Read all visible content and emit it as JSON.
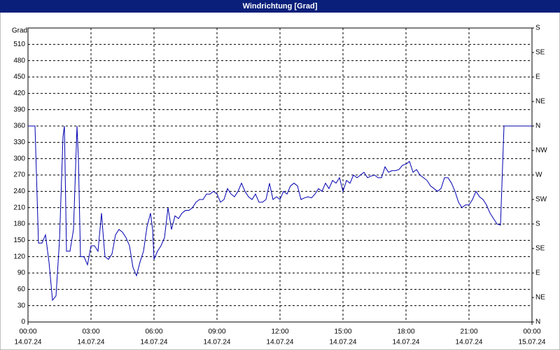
{
  "chart_data": {
    "type": "line",
    "title": "Windrichtung [Grad]",
    "y_label": "Grad",
    "x": [
      0,
      20,
      30,
      40,
      50,
      60,
      70,
      80,
      90,
      100,
      104,
      110,
      120,
      130,
      140,
      144,
      150,
      160,
      170,
      180,
      190,
      200,
      210,
      216,
      220,
      230,
      240,
      250,
      260,
      270,
      280,
      290,
      300,
      310,
      320,
      330,
      340,
      350,
      356,
      360,
      370,
      380,
      390,
      400,
      410,
      420,
      430,
      440,
      450,
      460,
      470,
      480,
      490,
      500,
      510,
      520,
      530,
      540,
      550,
      560,
      570,
      580,
      590,
      600,
      610,
      620,
      630,
      640,
      650,
      660,
      670,
      680,
      690,
      700,
      710,
      720,
      730,
      740,
      750,
      760,
      770,
      780,
      790,
      800,
      810,
      820,
      830,
      840,
      850,
      860,
      870,
      880,
      890,
      900,
      910,
      920,
      930,
      940,
      950,
      960,
      970,
      980,
      990,
      1000,
      1010,
      1020,
      1030,
      1040,
      1050,
      1060,
      1070,
      1080,
      1090,
      1100,
      1110,
      1120,
      1130,
      1140,
      1150,
      1160,
      1170,
      1180,
      1190,
      1200,
      1210,
      1220,
      1230,
      1240,
      1250,
      1260,
      1270,
      1280,
      1290,
      1300,
      1310,
      1320,
      1330,
      1340,
      1350,
      1360,
      1440
    ],
    "values": [
      360,
      360,
      145,
      145,
      160,
      110,
      40,
      48,
      150,
      340,
      360,
      130,
      130,
      170,
      360,
      300,
      120,
      120,
      105,
      140,
      140,
      130,
      200,
      150,
      120,
      115,
      125,
      160,
      170,
      165,
      155,
      140,
      100,
      85,
      110,
      130,
      175,
      200,
      170,
      115,
      130,
      140,
      155,
      210,
      170,
      195,
      190,
      200,
      205,
      205,
      210,
      220,
      225,
      225,
      235,
      235,
      240,
      235,
      220,
      225,
      245,
      235,
      230,
      240,
      255,
      240,
      230,
      225,
      235,
      220,
      220,
      225,
      255,
      225,
      230,
      225,
      240,
      235,
      250,
      255,
      250,
      225,
      228,
      230,
      228,
      235,
      245,
      240,
      255,
      245,
      260,
      255,
      265,
      240,
      260,
      255,
      270,
      265,
      270,
      275,
      265,
      268,
      270,
      265,
      265,
      285,
      275,
      278,
      278,
      280,
      288,
      290,
      295,
      275,
      280,
      270,
      265,
      260,
      250,
      245,
      240,
      245,
      265,
      265,
      255,
      240,
      220,
      210,
      215,
      215,
      225,
      240,
      230,
      225,
      215,
      200,
      190,
      180,
      178,
      360,
      360
    ],
    "color": "#0000b0",
    "xlim": [
      0,
      1440
    ],
    "xticks": [
      {
        "value": 0,
        "label": "00:00"
      },
      {
        "value": 180,
        "label": "03:00"
      },
      {
        "value": 360,
        "label": "06:00"
      },
      {
        "value": 540,
        "label": "09:00"
      },
      {
        "value": 720,
        "label": "12:00"
      },
      {
        "value": 900,
        "label": "15:00"
      },
      {
        "value": 1080,
        "label": "18:00"
      },
      {
        "value": 1260,
        "label": "21:00"
      },
      {
        "value": 1440,
        "label": "00:00"
      }
    ],
    "xtick_dates": [
      "14.07.24",
      "14.07.24",
      "14.07.24",
      "14.07.24",
      "14.07.24",
      "14.07.24",
      "14.07.24",
      "14.07.24",
      "15.07.24"
    ],
    "ylim": [
      0,
      540
    ],
    "yticks": [
      0,
      30,
      60,
      90,
      120,
      150,
      180,
      210,
      240,
      270,
      300,
      330,
      360,
      390,
      420,
      450,
      480,
      510
    ],
    "y2lim": [
      0,
      540
    ],
    "y2ticks": [
      {
        "value": 0,
        "label": "N"
      },
      {
        "value": 45,
        "label": "NE"
      },
      {
        "value": 90,
        "label": "E"
      },
      {
        "value": 135,
        "label": "SE"
      },
      {
        "value": 180,
        "label": "S"
      },
      {
        "value": 225,
        "label": "SW"
      },
      {
        "value": 270,
        "label": "W"
      },
      {
        "value": 315,
        "label": "NW"
      },
      {
        "value": 360,
        "label": "N"
      },
      {
        "value": 405,
        "label": "NE"
      },
      {
        "value": 450,
        "label": "E"
      },
      {
        "value": 495,
        "label": "SE"
      },
      {
        "value": 540,
        "label": "S"
      }
    ],
    "grid": true
  }
}
